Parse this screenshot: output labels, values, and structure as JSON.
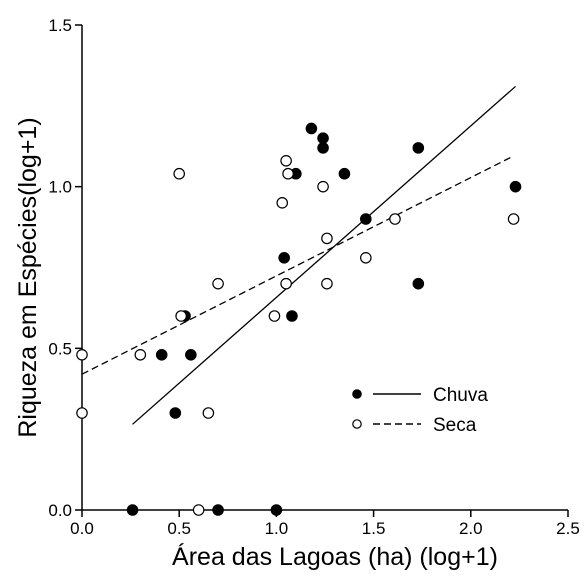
{
  "chart_data": {
    "type": "scatter",
    "title": "",
    "xlabel": "Área das Lagoas (ha) (log+1)",
    "ylabel": "Riqueza em Espécies(log+1)",
    "xlim": [
      0.0,
      2.5
    ],
    "ylim": [
      0.0,
      1.5
    ],
    "x_ticks": [
      0.0,
      0.5,
      1.0,
      1.5,
      2.0,
      2.5
    ],
    "y_ticks": [
      0.0,
      0.5,
      1.0,
      1.5
    ],
    "x_tick_labels": [
      "0.0",
      "0.5",
      "1.0",
      "1.5",
      "2.0",
      "2.5"
    ],
    "y_tick_labels": [
      "0.0",
      "0.5",
      "1.0",
      "1.5"
    ],
    "legend_position": "bottom-right",
    "grid": false,
    "series": [
      {
        "name": "Chuva",
        "marker": "filled-circle",
        "line_style": "solid",
        "points": [
          {
            "x": 0.26,
            "y": 0.0
          },
          {
            "x": 0.41,
            "y": 0.48
          },
          {
            "x": 0.48,
            "y": 0.3
          },
          {
            "x": 0.53,
            "y": 0.6
          },
          {
            "x": 0.56,
            "y": 0.48
          },
          {
            "x": 0.7,
            "y": 0.0
          },
          {
            "x": 1.0,
            "y": 0.0
          },
          {
            "x": 1.04,
            "y": 0.78
          },
          {
            "x": 1.08,
            "y": 0.6
          },
          {
            "x": 1.1,
            "y": 1.04
          },
          {
            "x": 1.18,
            "y": 1.18
          },
          {
            "x": 1.24,
            "y": 1.15
          },
          {
            "x": 1.24,
            "y": 1.12
          },
          {
            "x": 1.35,
            "y": 1.04
          },
          {
            "x": 1.46,
            "y": 0.9
          },
          {
            "x": 1.73,
            "y": 1.12
          },
          {
            "x": 1.73,
            "y": 0.7
          },
          {
            "x": 2.23,
            "y": 1.0
          }
        ],
        "fit": {
          "x": [
            0.26,
            2.23
          ],
          "y": [
            0.265,
            1.31
          ]
        }
      },
      {
        "name": "Seca",
        "marker": "open-circle",
        "line_style": "dashed",
        "points": [
          {
            "x": 0.0,
            "y": 0.48
          },
          {
            "x": 0.0,
            "y": 0.3
          },
          {
            "x": 0.3,
            "y": 0.48
          },
          {
            "x": 0.5,
            "y": 1.04
          },
          {
            "x": 0.51,
            "y": 0.6
          },
          {
            "x": 0.6,
            "y": 0.0
          },
          {
            "x": 0.65,
            "y": 0.3
          },
          {
            "x": 0.7,
            "y": 0.7
          },
          {
            "x": 0.99,
            "y": 0.6
          },
          {
            "x": 1.03,
            "y": 0.95
          },
          {
            "x": 1.05,
            "y": 1.08
          },
          {
            "x": 1.06,
            "y": 1.04
          },
          {
            "x": 1.05,
            "y": 0.7
          },
          {
            "x": 1.24,
            "y": 1.0
          },
          {
            "x": 1.26,
            "y": 0.84
          },
          {
            "x": 1.26,
            "y": 0.7
          },
          {
            "x": 1.46,
            "y": 0.78
          },
          {
            "x": 1.61,
            "y": 0.9
          },
          {
            "x": 2.22,
            "y": 0.9
          }
        ],
        "fit": {
          "x": [
            0.0,
            2.22
          ],
          "y": [
            0.42,
            1.095
          ]
        }
      }
    ]
  }
}
